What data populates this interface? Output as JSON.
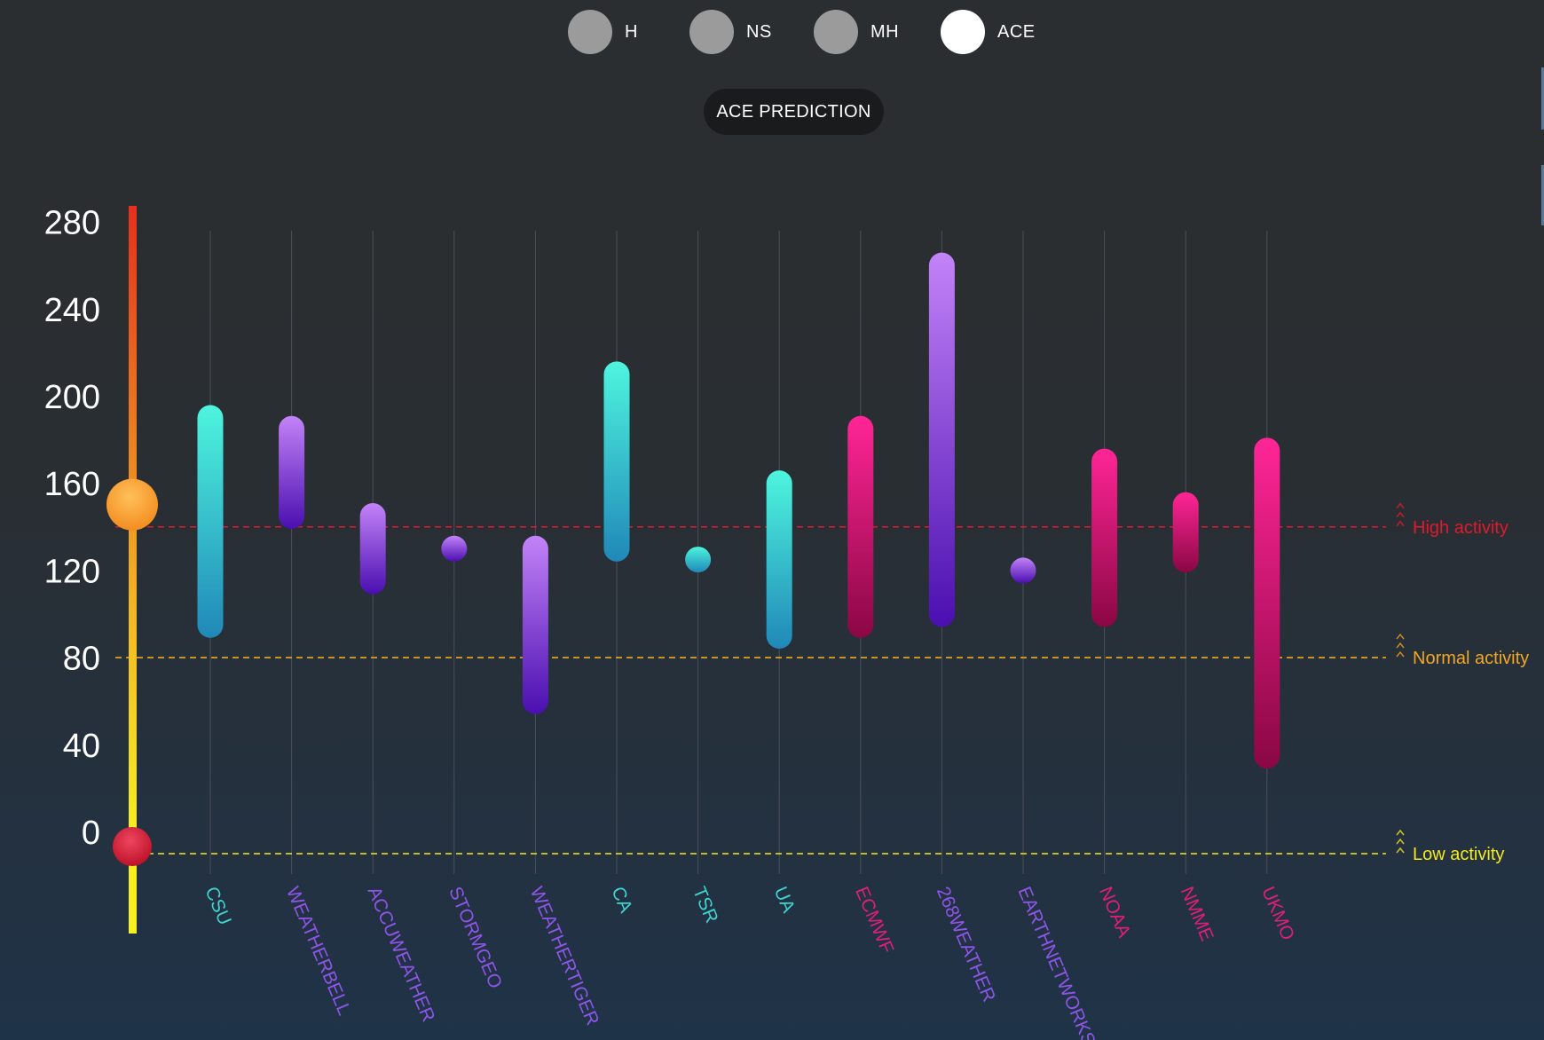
{
  "toggles": [
    {
      "label": "H",
      "active": false
    },
    {
      "label": "NS",
      "active": false
    },
    {
      "label": "MH",
      "active": false
    },
    {
      "label": "ACE",
      "active": true
    }
  ],
  "title_button": "ACE PREDICTION",
  "colors": {
    "teal_top": "#4ef5de",
    "teal_bottom": "#2088b8",
    "purple_top": "#c383f8",
    "purple_bottom": "#4a0fb0",
    "pink_top": "#ff2596",
    "pink_bottom": "#8a0744",
    "high": "#e01a2c",
    "normal": "#f2a624",
    "low": "#f3ea1f"
  },
  "chart_data": {
    "type": "range-bar",
    "title": "ACE PREDICTION",
    "ylim": [
      0,
      280
    ],
    "y_ticks": [
      0,
      40,
      80,
      120,
      160,
      200,
      240,
      280
    ],
    "grid": "vertical per category",
    "slider": {
      "min": 0,
      "value": 148
    },
    "thresholds": [
      {
        "label": "High activity",
        "value": 150,
        "color": "#e01a2c"
      },
      {
        "label": "Normal activity",
        "value": 90,
        "color": "#f2a624"
      },
      {
        "label": "Low activity",
        "value": 0,
        "color": "#f3ea1f"
      }
    ],
    "categories": [
      "CSU",
      "WEATHERBELL",
      "ACCUWEATHER",
      "STORMGEO",
      "WEATHERTIGER",
      "CA",
      "TSR",
      "UA",
      "ECMWF",
      "268WEATHER",
      "EARTHNETWORKS",
      "NOAA",
      "NMME",
      "UKMO"
    ],
    "series": [
      {
        "category": "CSU",
        "low": 105,
        "high": 200,
        "group": "teal"
      },
      {
        "category": "WEATHERBELL",
        "low": 155,
        "high": 195,
        "group": "purple"
      },
      {
        "category": "ACCUWEATHER",
        "low": 125,
        "high": 155,
        "group": "purple"
      },
      {
        "category": "STORMGEO",
        "low": 140,
        "high": 140,
        "group": "purple"
      },
      {
        "category": "WEATHERTIGER",
        "low": 70,
        "high": 140,
        "group": "purple"
      },
      {
        "category": "CA",
        "low": 140,
        "high": 220,
        "group": "teal"
      },
      {
        "category": "TSR",
        "low": 135,
        "high": 135,
        "group": "teal"
      },
      {
        "category": "UA",
        "low": 100,
        "high": 170,
        "group": "teal"
      },
      {
        "category": "ECMWF",
        "low": 105,
        "high": 195,
        "group": "pink"
      },
      {
        "category": "268WEATHER",
        "low": 110,
        "high": 270,
        "group": "purple"
      },
      {
        "category": "EARTHNETWORKS",
        "low": 130,
        "high": 130,
        "group": "purple"
      },
      {
        "category": "NOAA",
        "low": 110,
        "high": 180,
        "group": "pink"
      },
      {
        "category": "NMME",
        "low": 135,
        "high": 160,
        "group": "pink"
      },
      {
        "category": "UKMO",
        "low": 45,
        "high": 185,
        "group": "pink"
      }
    ]
  }
}
